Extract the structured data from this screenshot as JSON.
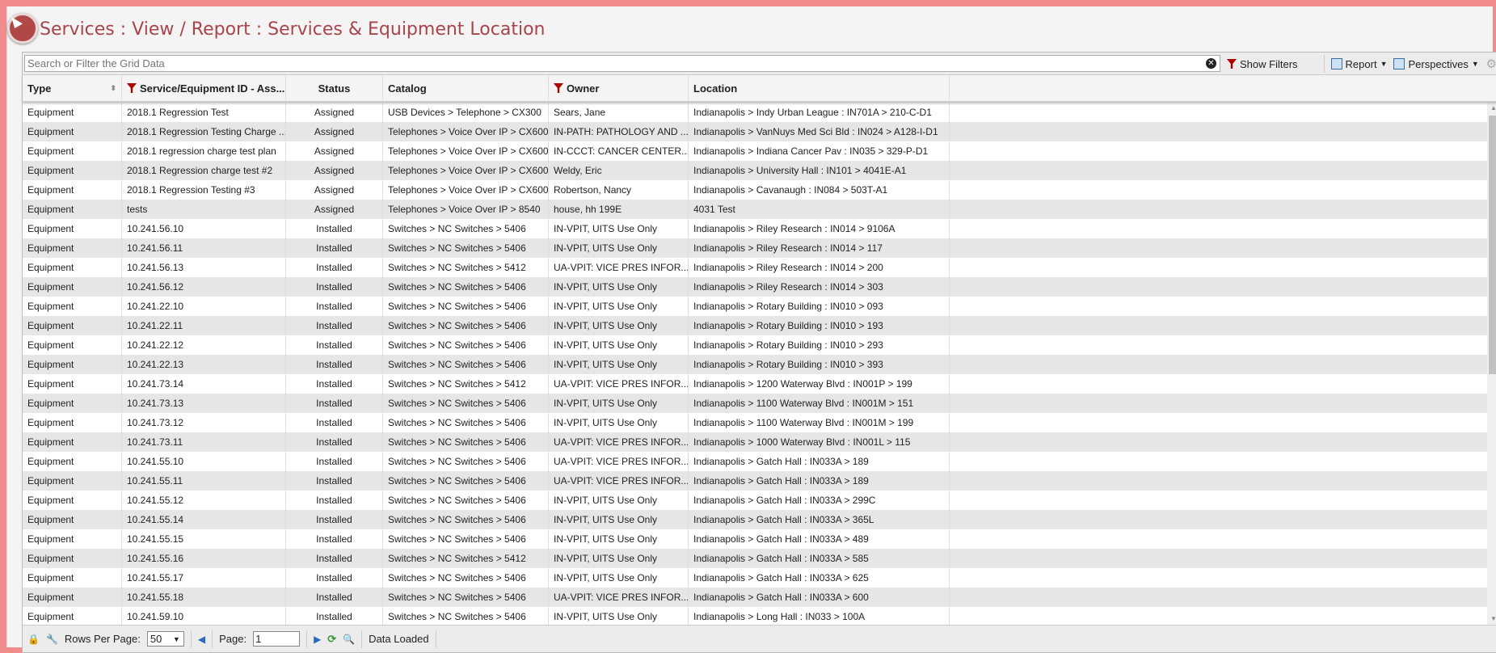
{
  "page": {
    "title": "Services : View / Report : Services & Equipment Location"
  },
  "toolbar": {
    "search_placeholder": "Search or Filter the Grid Data",
    "show_filters": "Show Filters",
    "report": "Report",
    "perspectives": "Perspectives"
  },
  "columns": [
    "Type",
    "Service/Equipment ID - Ass...",
    "Status",
    "Catalog",
    "Owner",
    "Location"
  ],
  "rows": [
    [
      "Equipment",
      "2018.1 Regression Test",
      "Assigned",
      "USB Devices > Telephone > CX300",
      "Sears, Jane",
      "Indianapolis > Indy Urban League : IN701A > 210-C-D1"
    ],
    [
      "Equipment",
      "2018.1 Regression Testing Charge ...",
      "Assigned",
      "Telephones > Voice Over IP > CX600",
      "IN-PATH: PATHOLOGY AND ...",
      "Indianapolis > VanNuys Med Sci Bld : IN024 > A128-I-D1"
    ],
    [
      "Equipment",
      "2018.1 regression charge test plan",
      "Assigned",
      "Telephones > Voice Over IP > CX600",
      "IN-CCCT: CANCER CENTER...",
      "Indianapolis > Indiana Cancer Pav : IN035 > 329-P-D1"
    ],
    [
      "Equipment",
      "2018.1 Regression charge test #2",
      "Assigned",
      "Telephones > Voice Over IP > CX600",
      "Weldy, Eric",
      "Indianapolis > University Hall : IN101 > 4041E-A1"
    ],
    [
      "Equipment",
      "2018.1 Regression Testing #3",
      "Assigned",
      "Telephones > Voice Over IP > CX600",
      "Robertson, Nancy",
      "Indianapolis > Cavanaugh : IN084 > 503T-A1"
    ],
    [
      "Equipment",
      "tests",
      "Assigned",
      "Telephones > Voice Over IP > 8540",
      "house, hh 199E",
      "4031 Test"
    ],
    [
      "Equipment",
      "10.241.56.10",
      "Installed",
      "Switches > NC Switches > 5406",
      "IN-VPIT, UITS Use Only",
      "Indianapolis > Riley Research : IN014 > 9106A"
    ],
    [
      "Equipment",
      "10.241.56.11",
      "Installed",
      "Switches > NC Switches > 5406",
      "IN-VPIT, UITS Use Only",
      "Indianapolis > Riley Research : IN014 > 117"
    ],
    [
      "Equipment",
      "10.241.56.13",
      "Installed",
      "Switches > NC Switches > 5412",
      "UA-VPIT: VICE PRES INFOR...",
      "Indianapolis > Riley Research : IN014 > 200"
    ],
    [
      "Equipment",
      "10.241.56.12",
      "Installed",
      "Switches > NC Switches > 5406",
      "IN-VPIT, UITS Use Only",
      "Indianapolis > Riley Research : IN014 > 303"
    ],
    [
      "Equipment",
      "10.241.22.10",
      "Installed",
      "Switches > NC Switches > 5406",
      "IN-VPIT, UITS Use Only",
      "Indianapolis > Rotary Building : IN010 > 093"
    ],
    [
      "Equipment",
      "10.241.22.11",
      "Installed",
      "Switches > NC Switches > 5406",
      "IN-VPIT, UITS Use Only",
      "Indianapolis > Rotary Building : IN010 > 193"
    ],
    [
      "Equipment",
      "10.241.22.12",
      "Installed",
      "Switches > NC Switches > 5406",
      "IN-VPIT, UITS Use Only",
      "Indianapolis > Rotary Building : IN010 > 293"
    ],
    [
      "Equipment",
      "10.241.22.13",
      "Installed",
      "Switches > NC Switches > 5406",
      "IN-VPIT, UITS Use Only",
      "Indianapolis > Rotary Building : IN010 > 393"
    ],
    [
      "Equipment",
      "10.241.73.14",
      "Installed",
      "Switches > NC Switches > 5412",
      "UA-VPIT: VICE PRES INFOR...",
      "Indianapolis > 1200 Waterway Blvd : IN001P > 199"
    ],
    [
      "Equipment",
      "10.241.73.13",
      "Installed",
      "Switches > NC Switches > 5406",
      "IN-VPIT, UITS Use Only",
      "Indianapolis > 1100 Waterway Blvd : IN001M > 151"
    ],
    [
      "Equipment",
      "10.241.73.12",
      "Installed",
      "Switches > NC Switches > 5406",
      "IN-VPIT, UITS Use Only",
      "Indianapolis > 1100 Waterway Blvd : IN001M > 199"
    ],
    [
      "Equipment",
      "10.241.73.11",
      "Installed",
      "Switches > NC Switches > 5406",
      "UA-VPIT: VICE PRES INFOR...",
      "Indianapolis > 1000 Waterway Blvd : IN001L > 115"
    ],
    [
      "Equipment",
      "10.241.55.10",
      "Installed",
      "Switches > NC Switches > 5406",
      "UA-VPIT: VICE PRES INFOR...",
      "Indianapolis > Gatch Hall : IN033A > 189"
    ],
    [
      "Equipment",
      "10.241.55.11",
      "Installed",
      "Switches > NC Switches > 5406",
      "UA-VPIT: VICE PRES INFOR...",
      "Indianapolis > Gatch Hall : IN033A > 189"
    ],
    [
      "Equipment",
      "10.241.55.12",
      "Installed",
      "Switches > NC Switches > 5406",
      "IN-VPIT, UITS Use Only",
      "Indianapolis > Gatch Hall : IN033A > 299C"
    ],
    [
      "Equipment",
      "10.241.55.14",
      "Installed",
      "Switches > NC Switches > 5406",
      "IN-VPIT, UITS Use Only",
      "Indianapolis > Gatch Hall : IN033A > 365L"
    ],
    [
      "Equipment",
      "10.241.55.15",
      "Installed",
      "Switches > NC Switches > 5406",
      "IN-VPIT, UITS Use Only",
      "Indianapolis > Gatch Hall : IN033A > 489"
    ],
    [
      "Equipment",
      "10.241.55.16",
      "Installed",
      "Switches > NC Switches > 5412",
      "IN-VPIT, UITS Use Only",
      "Indianapolis > Gatch Hall : IN033A > 585"
    ],
    [
      "Equipment",
      "10.241.55.17",
      "Installed",
      "Switches > NC Switches > 5406",
      "IN-VPIT, UITS Use Only",
      "Indianapolis > Gatch Hall : IN033A > 625"
    ],
    [
      "Equipment",
      "10.241.55.18",
      "Installed",
      "Switches > NC Switches > 5406",
      "UA-VPIT: VICE PRES INFOR...",
      "Indianapolis > Gatch Hall : IN033A > 600"
    ],
    [
      "Equipment",
      "10.241.59.10",
      "Installed",
      "Switches > NC Switches > 5406",
      "IN-VPIT, UITS Use Only",
      "Indianapolis > Long Hall : IN033 > 100A"
    ]
  ],
  "footer": {
    "rows_per_page_label": "Rows Per Page:",
    "rows_per_page": "50",
    "page_label": "Page:",
    "page": "1",
    "status": "Data Loaded"
  },
  "colors": {
    "accent": "#a9454a",
    "frame": "#f08c8c",
    "filter_icon": "#aa0000"
  }
}
